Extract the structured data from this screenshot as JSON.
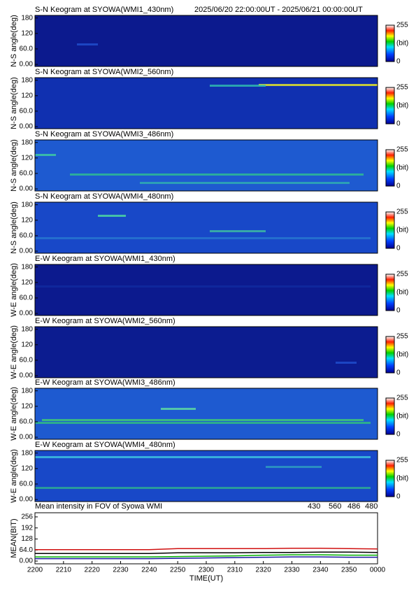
{
  "chart_data": [
    {
      "type": "keogram",
      "title": "S-N Keogram at SYOWA(WMI1_430nm)",
      "subtitle": "2025/06/20 22:00:00UT - 2025/06/21 00:00:00UT",
      "ylabel": "N-S angle(deg)",
      "ylim": [
        -8,
        190
      ],
      "yticks": [
        {
          "value": 0,
          "label": "0.00"
        },
        {
          "value": 60,
          "label": "60.0"
        },
        120,
        180
      ],
      "colorbar_ticks": [
        0,
        255
      ],
      "colorbar_label": "(bit)"
    },
    {
      "type": "keogram",
      "title": "S-N Keogram at SYOWA(WMI2_560nm)",
      "ylabel": "N-S angle(deg)",
      "ylim": [
        -8,
        190
      ],
      "yticks": [
        {
          "value": 0,
          "label": "0.00"
        },
        {
          "value": 60,
          "label": "60.0"
        },
        120,
        180
      ],
      "colorbar_ticks": [
        0,
        255
      ],
      "colorbar_label": "(bit)"
    },
    {
      "type": "keogram",
      "title": "S-N Keogram at SYOWA(WMI3_486nm)",
      "ylabel": "N-S angle(deg)",
      "ylim": [
        -8,
        190
      ],
      "yticks": [
        {
          "value": 0,
          "label": "0.00"
        },
        {
          "value": 60,
          "label": "60.0"
        },
        120,
        180
      ],
      "colorbar_ticks": [
        0,
        255
      ],
      "colorbar_label": "(bit)"
    },
    {
      "type": "keogram",
      "title": "S-N Keogram at SYOWA(WMI4_480nm)",
      "ylabel": "N-S angle(deg)",
      "ylim": [
        -8,
        190
      ],
      "yticks": [
        {
          "value": 0,
          "label": "0.00"
        },
        {
          "value": 60,
          "label": "60.0"
        },
        120,
        180
      ],
      "colorbar_ticks": [
        0,
        255
      ],
      "colorbar_label": "(bit)"
    },
    {
      "type": "keogram",
      "title": "E-W Keogram at SYOWA(WMI1_430nm)",
      "ylabel": "W-E angle(deg)",
      "ylim": [
        -8,
        190
      ],
      "yticks": [
        {
          "value": 0,
          "label": "0.00"
        },
        {
          "value": 60,
          "label": "60.0"
        },
        120,
        180
      ],
      "colorbar_ticks": [
        0,
        255
      ],
      "colorbar_label": "(bit)"
    },
    {
      "type": "keogram",
      "title": "E-W Keogram at SYOWA(WMI2_560nm)",
      "ylabel": "W-E angle(deg)",
      "ylim": [
        -8,
        190
      ],
      "yticks": [
        {
          "value": 0,
          "label": "0.00"
        },
        {
          "value": 60,
          "label": "60.0"
        },
        120,
        180
      ],
      "colorbar_ticks": [
        0,
        255
      ],
      "colorbar_label": "(bit)"
    },
    {
      "type": "keogram",
      "title": "E-W Keogram at SYOWA(WMI3_486nm)",
      "ylabel": "W-E angle(deg)",
      "ylim": [
        -8,
        190
      ],
      "yticks": [
        {
          "value": 0,
          "label": "0.00"
        },
        {
          "value": 60,
          "label": "60.0"
        },
        120,
        180
      ],
      "colorbar_ticks": [
        0,
        255
      ],
      "colorbar_label": "(bit)"
    },
    {
      "type": "keogram",
      "title": "E-W Keogram at SYOWA(WMI4_480nm)",
      "ylabel": "W-E angle(deg)",
      "ylim": [
        -8,
        190
      ],
      "yticks": [
        {
          "value": 0,
          "label": "0.00"
        },
        {
          "value": 60,
          "label": "60.0"
        },
        120,
        180
      ],
      "colorbar_ticks": [
        0,
        255
      ],
      "colorbar_label": "(bit)"
    },
    {
      "type": "line",
      "title": "Mean intensity in FOV of Syowa WMI",
      "ylabel": "MEAN(BIT)",
      "xlabel": "TIME(UT)",
      "x": [
        0,
        10,
        20,
        30,
        40,
        50,
        60,
        70,
        80,
        90,
        100,
        110,
        120
      ],
      "xlim": [
        0,
        120
      ],
      "xticks": [
        {
          "value": 0,
          "label": "2200"
        },
        {
          "value": 10,
          "label": "2210"
        },
        {
          "value": 20,
          "label": "2220"
        },
        {
          "value": 30,
          "label": "2230"
        },
        {
          "value": 40,
          "label": "2240"
        },
        {
          "value": 50,
          "label": "2250"
        },
        {
          "value": 60,
          "label": "2300"
        },
        {
          "value": 70,
          "label": "2310"
        },
        {
          "value": 80,
          "label": "2320"
        },
        {
          "value": 90,
          "label": "2330"
        },
        {
          "value": 100,
          "label": "2340"
        },
        {
          "value": 110,
          "label": "2350"
        },
        {
          "value": 120,
          "label": "0000"
        }
      ],
      "ylim": [
        -16,
        280
      ],
      "yticks": [
        {
          "value": 0,
          "label": "0.00"
        },
        {
          "value": 64,
          "label": "64.0"
        },
        128,
        192,
        256
      ],
      "series": [
        {
          "name": "430",
          "color": "#1a1aa0",
          "values": [
            14,
            14,
            14,
            14,
            14,
            16,
            18,
            20,
            22,
            24,
            24,
            22,
            22
          ]
        },
        {
          "name": "560",
          "color": "#00b000",
          "values": [
            24,
            24,
            24,
            24,
            24,
            26,
            28,
            30,
            34,
            36,
            36,
            34,
            34
          ]
        },
        {
          "name": "486",
          "color": "#d01010",
          "values": [
            66,
            66,
            66,
            66,
            66,
            72,
            72,
            72,
            72,
            74,
            74,
            72,
            70
          ]
        },
        {
          "name": "480",
          "color": "#000000",
          "values": [
            44,
            44,
            44,
            44,
            44,
            48,
            48,
            48,
            50,
            50,
            52,
            52,
            50
          ]
        }
      ]
    }
  ]
}
